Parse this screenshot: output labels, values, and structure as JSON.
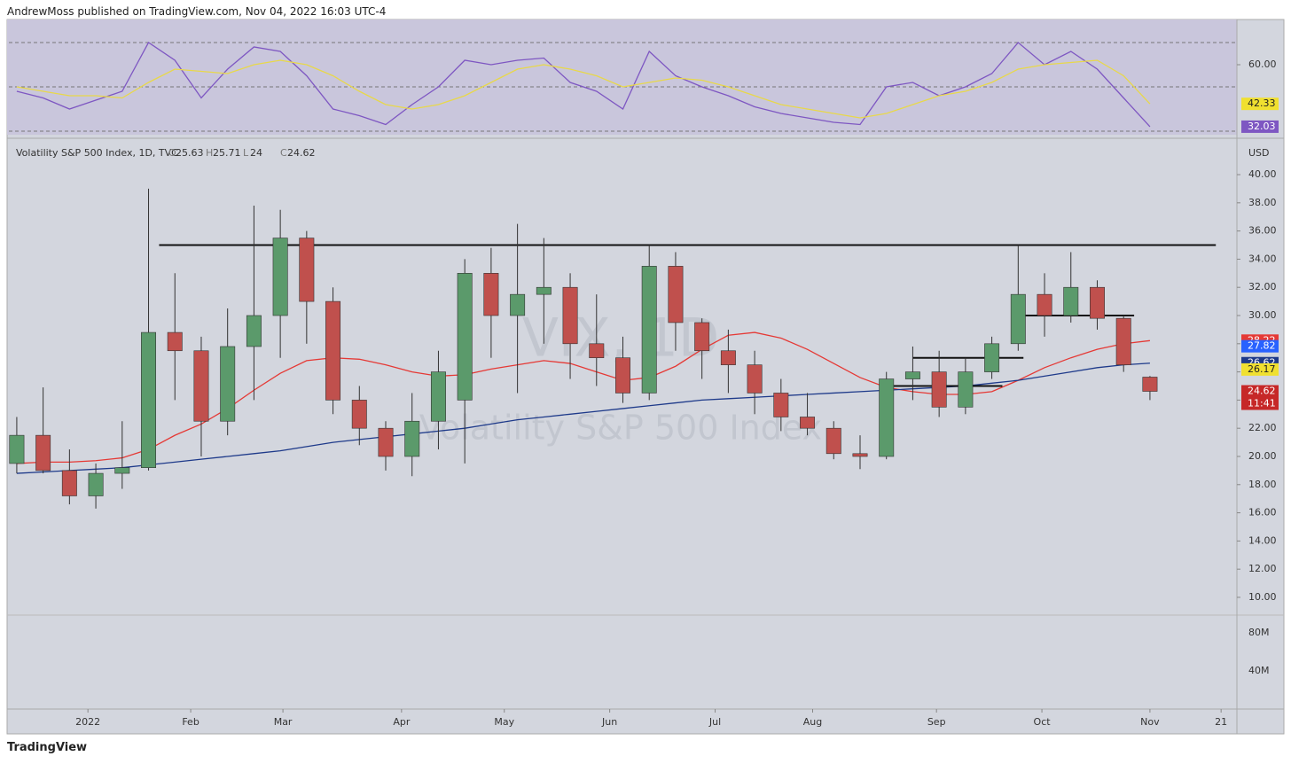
{
  "header": {
    "publisher": "AndrewMoss published on TradingView.com, Nov 04, 2022 16:03 UTC-4"
  },
  "footer": {
    "brand": "TradingView"
  },
  "chart_data": [
    {
      "type": "line",
      "panel": "rsi",
      "ylim": [
        28.4,
        80.4
      ],
      "yticks": [
        {
          "value": 60,
          "label": "60.00"
        }
      ],
      "levels": [
        70,
        50,
        30
      ],
      "xlim": [
        -0.3,
        46.3
      ],
      "series": [
        {
          "name": "RSI",
          "color": "#7e57c2",
          "values": [
            48,
            45,
            40,
            44,
            48,
            70,
            62,
            45,
            58,
            68,
            66,
            55,
            40,
            37,
            33,
            42,
            50,
            62,
            60,
            62,
            63,
            52,
            48,
            40,
            66,
            55,
            50,
            46,
            41,
            38,
            36,
            34,
            33,
            50,
            52,
            46,
            50,
            56,
            70,
            60,
            66,
            58,
            45,
            32.03
          ]
        },
        {
          "name": "RSI MA",
          "color": "#e8d84a",
          "values": [
            50,
            48,
            46,
            46,
            45,
            52,
            58,
            57,
            56,
            60,
            62,
            60,
            55,
            48,
            42,
            40,
            42,
            46,
            52,
            58,
            60,
            58,
            55,
            50,
            52,
            54,
            53,
            50,
            46,
            42,
            40,
            38,
            36,
            38,
            42,
            46,
            48,
            52,
            58,
            60,
            61,
            62,
            55,
            42.33
          ]
        }
      ],
      "price_labels": [
        {
          "value": 42.33,
          "color": "#f0e030",
          "text_color": "#222"
        },
        {
          "value": 32.03,
          "color": "#7e57c2",
          "text_color": "#fff"
        }
      ]
    },
    {
      "type": "candlestick",
      "panel": "price",
      "title": "Volatility S&P 500 Index, 1D, TVC",
      "watermark": "VIX, 1D",
      "watermark_sub": "Volatility S&P 500 Index",
      "legend_ohlc": [
        {
          "label": "O",
          "value": 25.63
        },
        {
          "label": "H",
          "value": 25.71
        },
        {
          "label": "L",
          "value": 24.0
        },
        {
          "label": "C",
          "value": 24.62
        }
      ],
      "currency": "USD",
      "volume_axis_labels": [
        "80M",
        "40M"
      ],
      "ylim": [
        8.74,
        42.14
      ],
      "yticks": [
        {
          "value": 10,
          "label": "10.00"
        },
        {
          "value": 12,
          "label": "12.00"
        },
        {
          "value": 14,
          "label": "14.00"
        },
        {
          "value": 16,
          "label": "16.00"
        },
        {
          "value": 18,
          "label": "18.00"
        },
        {
          "value": 20,
          "label": "20.00"
        },
        {
          "value": 22,
          "label": "22.00"
        },
        {
          "value": 24,
          "label": "24.00"
        },
        {
          "value": 26,
          "label": "26.00"
        },
        {
          "value": 28,
          "label": "28.00"
        },
        {
          "value": 30,
          "label": "30.00"
        },
        {
          "value": 32,
          "label": "32.00"
        },
        {
          "value": 34,
          "label": "34.00"
        },
        {
          "value": 36,
          "label": "36.00"
        },
        {
          "value": 38,
          "label": "38.00"
        },
        {
          "value": 40,
          "label": "40.00"
        }
      ],
      "xlim": [
        -0.3,
        46.3
      ],
      "xticks": [
        {
          "value": 2.7,
          "label": "2022"
        },
        {
          "value": 6.6,
          "label": "Feb"
        },
        {
          "value": 10.1,
          "label": "Mar"
        },
        {
          "value": 14.6,
          "label": "Apr"
        },
        {
          "value": 18.5,
          "label": "May"
        },
        {
          "value": 22.5,
          "label": "Jun"
        },
        {
          "value": 26.5,
          "label": "Jul"
        },
        {
          "value": 30.2,
          "label": "Aug"
        },
        {
          "value": 34.9,
          "label": "Sep"
        },
        {
          "value": 38.9,
          "label": "Oct"
        },
        {
          "value": 43.0,
          "label": "Nov"
        },
        {
          "value": 45.7,
          "label": "21"
        }
      ],
      "up_color": "#5b9a6b",
      "down_color": "#c0504d",
      "open": [
        19.5,
        21.5,
        19.0,
        17.2,
        18.8,
        19.2,
        28.8,
        27.5,
        22.5,
        27.8,
        30.0,
        35.5,
        31.0,
        24.0,
        22.0,
        20.0,
        22.5,
        24.0,
        33.0,
        30.0,
        31.5,
        32.0,
        28.0,
        27.0,
        24.5,
        33.5,
        29.5,
        27.5,
        26.5,
        24.5,
        22.8,
        22.0,
        20.2,
        20.0,
        25.5,
        26.0,
        23.5,
        26.0,
        28.0,
        31.5,
        30.0,
        32.0,
        29.8,
        25.63
      ],
      "high": [
        22.8,
        24.9,
        20.5,
        19.5,
        22.5,
        39.0,
        33.0,
        28.5,
        30.5,
        37.8,
        37.5,
        36.0,
        32.0,
        25.0,
        22.5,
        24.5,
        27.5,
        34.0,
        34.8,
        36.5,
        35.5,
        33.0,
        31.5,
        28.5,
        35.0,
        34.5,
        29.8,
        29.0,
        27.5,
        25.5,
        24.5,
        22.5,
        21.5,
        26.0,
        27.8,
        27.5,
        27.0,
        28.5,
        35.0,
        33.0,
        34.5,
        32.5,
        30.0,
        25.71
      ],
      "low": [
        18.8,
        18.8,
        16.6,
        16.3,
        17.7,
        19.0,
        24.0,
        20.0,
        21.5,
        24.0,
        27.0,
        28.0,
        23.0,
        20.8,
        19.0,
        18.6,
        20.5,
        19.5,
        27.0,
        24.5,
        28.0,
        25.5,
        25.0,
        23.8,
        24.0,
        27.5,
        25.5,
        24.5,
        23.0,
        21.8,
        21.5,
        19.8,
        19.1,
        19.8,
        24.0,
        22.8,
        23.0,
        25.5,
        27.5,
        28.5,
        29.5,
        29.0,
        26.0,
        24.0
      ],
      "close": [
        21.5,
        19.0,
        17.2,
        18.8,
        19.2,
        28.8,
        27.5,
        22.5,
        27.8,
        30.0,
        35.5,
        31.0,
        24.0,
        22.0,
        20.0,
        22.5,
        26.0,
        33.0,
        30.0,
        31.5,
        32.0,
        28.0,
        27.0,
        24.5,
        33.5,
        29.5,
        27.5,
        26.5,
        24.5,
        22.8,
        22.0,
        20.2,
        20.0,
        25.5,
        26.0,
        23.5,
        26.0,
        28.0,
        31.5,
        30.0,
        32.0,
        29.8,
        26.5,
        24.62
      ],
      "series": [
        {
          "name": "MA 50",
          "color": "#e53935",
          "values": [
            19.5,
            19.6,
            19.6,
            19.7,
            19.9,
            20.5,
            21.5,
            22.3,
            23.4,
            24.7,
            25.9,
            26.8,
            27.0,
            26.9,
            26.5,
            26.0,
            25.7,
            25.8,
            26.2,
            26.5,
            26.8,
            26.6,
            26.0,
            25.4,
            25.6,
            26.4,
            27.6,
            28.6,
            28.8,
            28.4,
            27.6,
            26.6,
            25.6,
            24.9,
            24.6,
            24.4,
            24.4,
            24.6,
            25.4,
            26.3,
            27.0,
            27.6,
            28.0,
            28.22
          ]
        },
        {
          "name": "MA 200",
          "color": "#1e3a8a",
          "values": [
            18.8,
            18.9,
            19.0,
            19.1,
            19.2,
            19.4,
            19.6,
            19.8,
            20.0,
            20.2,
            20.4,
            20.7,
            21.0,
            21.2,
            21.4,
            21.6,
            21.8,
            22.0,
            22.3,
            22.6,
            22.8,
            23.0,
            23.2,
            23.4,
            23.6,
            23.8,
            24.0,
            24.1,
            24.2,
            24.3,
            24.4,
            24.5,
            24.6,
            24.7,
            24.8,
            24.9,
            25.0,
            25.2,
            25.4,
            25.7,
            26.0,
            26.3,
            26.5,
            26.62
          ]
        }
      ],
      "hlines": [
        {
          "value": 35,
          "from": 5.4,
          "to": 45.5
        },
        {
          "value": 30,
          "from": 38.0,
          "to": 42.4
        },
        {
          "value": 27,
          "from": 34.0,
          "to": 38.2
        },
        {
          "value": 25,
          "from": 33.2,
          "to": 37.4
        }
      ],
      "price_labels": [
        {
          "value": 28.22,
          "color": "#e53935",
          "text_color": "#fff"
        },
        {
          "value": 27.82,
          "color": "#2962ff",
          "text_color": "#fff"
        },
        {
          "value": 26.62,
          "color": "#1e3a8a",
          "text_color": "#fff"
        },
        {
          "value": 26.17,
          "color": "#f0e030",
          "text_color": "#222"
        },
        {
          "value": 24.62,
          "color": "#c62828",
          "text_color": "#fff",
          "countdown": "11:41"
        }
      ]
    }
  ]
}
